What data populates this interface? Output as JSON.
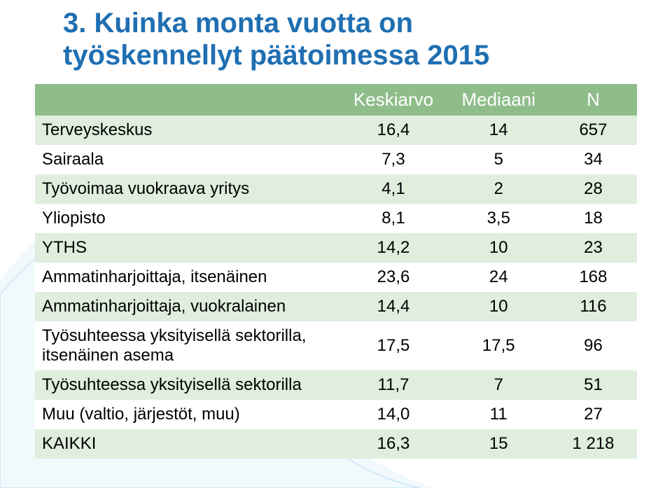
{
  "title_color": "#1f6fb2",
  "title_line1": "3. Kuinka monta vuotta on",
  "title_line2": "työskennellyt päätoimessa 2015",
  "table": {
    "header_bg": "#8fbd8a",
    "row_alt_bg": "#dfeedd",
    "row_bg": "#ffffff",
    "text_color": "#000000",
    "header_text_color": "#ffffff",
    "font_size": 24,
    "columns": [
      "",
      "Keskiarvo",
      "Mediaani",
      "N"
    ],
    "rows": [
      {
        "label": "Terveyskeskus",
        "ka": "16,4",
        "md": "14",
        "n": "657"
      },
      {
        "label": "Sairaala",
        "ka": "7,3",
        "md": "5",
        "n": "34"
      },
      {
        "label": "Työvoimaa vuokraava yritys",
        "ka": "4,1",
        "md": "2",
        "n": "28"
      },
      {
        "label": "Yliopisto",
        "ka": "8,1",
        "md": "3,5",
        "n": "18"
      },
      {
        "label": "YTHS",
        "ka": "14,2",
        "md": "10",
        "n": "23"
      },
      {
        "label": "Ammatinharjoittaja, itsenäinen",
        "ka": "23,6",
        "md": "24",
        "n": "168"
      },
      {
        "label": "Ammatinharjoittaja, vuokralainen",
        "ka": "14,4",
        "md": "10",
        "n": "116"
      },
      {
        "label": "Työsuhteessa yksityisellä sektorilla, itsenäinen asema",
        "ka": "17,5",
        "md": "17,5",
        "n": "96"
      },
      {
        "label": "Työsuhteessa yksityisellä sektorilla",
        "ka": "11,7",
        "md": "7",
        "n": "51"
      },
      {
        "label": "Muu (valtio, järjestöt, muu)",
        "ka": "14,0",
        "md": "11",
        "n": "27"
      },
      {
        "label": "KAIKKI",
        "ka": "16,3",
        "md": "15",
        "n": "1 218"
      }
    ]
  }
}
